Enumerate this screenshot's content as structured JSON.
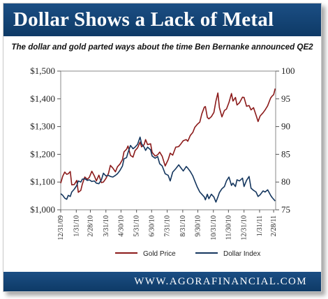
{
  "title": "Dollar Shows a Lack of Metal",
  "subtitle": "The dollar and gold parted ways about the time Ben Bernanke announced QE2",
  "footer": "WWW.AGORAFINANCIAL.COM",
  "colors": {
    "header_bg": "#124170",
    "gold_line": "#8b1a1a",
    "dollar_line": "#14365e"
  },
  "chart_data": {
    "type": "line",
    "title": "Dollar Shows a Lack of Metal",
    "x_tick_labels": [
      "12/31/09",
      "1/31/10",
      "2/28/10",
      "3/31/10",
      "4/30/10",
      "5/31/10",
      "6/30/10",
      "7/31/10",
      "8/31/10",
      "9/30/10",
      "10/31/10",
      "11/30/10",
      "12/31/10",
      "1/31/11",
      "2/28/11"
    ],
    "y_left": {
      "ticks": [
        "$1,000",
        "$1,100",
        "$1,200",
        "$1,300",
        "$1,400",
        "$1,500"
      ],
      "ylim": [
        1000,
        1500
      ]
    },
    "y_right": {
      "ticks": [
        "75",
        "80",
        "85",
        "90",
        "95",
        "100"
      ],
      "ylim": [
        75,
        100
      ]
    },
    "grid": false,
    "legend_position": "bottom",
    "x_start": "2009-12-31",
    "series": [
      {
        "name": "Gold Price",
        "axis": "left",
        "points": [
          [
            "2009-12-31",
            1096
          ],
          [
            "2010-01-04",
            1121
          ],
          [
            "2010-01-08",
            1136
          ],
          [
            "2010-01-12",
            1128
          ],
          [
            "2010-01-15",
            1130
          ],
          [
            "2010-01-19",
            1138
          ],
          [
            "2010-01-22",
            1090
          ],
          [
            "2010-01-27",
            1091
          ],
          [
            "2010-02-01",
            1106
          ],
          [
            "2010-02-04",
            1063
          ],
          [
            "2010-02-09",
            1070
          ],
          [
            "2010-02-12",
            1092
          ],
          [
            "2010-02-17",
            1118
          ],
          [
            "2010-02-22",
            1110
          ],
          [
            "2010-02-26",
            1117
          ],
          [
            "2010-03-03",
            1139
          ],
          [
            "2010-03-08",
            1122
          ],
          [
            "2010-03-12",
            1104
          ],
          [
            "2010-03-17",
            1125
          ],
          [
            "2010-03-22",
            1098
          ],
          [
            "2010-03-26",
            1100
          ],
          [
            "2010-03-31",
            1113
          ],
          [
            "2010-04-05",
            1131
          ],
          [
            "2010-04-09",
            1160
          ],
          [
            "2010-04-14",
            1150
          ],
          [
            "2010-04-19",
            1137
          ],
          [
            "2010-04-23",
            1155
          ],
          [
            "2010-04-28",
            1165
          ],
          [
            "2010-05-03",
            1181
          ],
          [
            "2010-05-06",
            1209
          ],
          [
            "2010-05-11",
            1218
          ],
          [
            "2010-05-14",
            1230
          ],
          [
            "2010-05-19",
            1196
          ],
          [
            "2010-05-24",
            1190
          ],
          [
            "2010-05-28",
            1213
          ],
          [
            "2010-06-02",
            1223
          ],
          [
            "2010-06-07",
            1244
          ],
          [
            "2010-06-10",
            1227
          ],
          [
            "2010-06-15",
            1235
          ],
          [
            "2010-06-18",
            1253
          ],
          [
            "2010-06-22",
            1235
          ],
          [
            "2010-06-28",
            1238
          ],
          [
            "2010-07-01",
            1207
          ],
          [
            "2010-07-07",
            1194
          ],
          [
            "2010-07-12",
            1198
          ],
          [
            "2010-07-16",
            1208
          ],
          [
            "2010-07-21",
            1193
          ],
          [
            "2010-07-27",
            1158
          ],
          [
            "2010-08-02",
            1181
          ],
          [
            "2010-08-06",
            1204
          ],
          [
            "2010-08-11",
            1197
          ],
          [
            "2010-08-17",
            1226
          ],
          [
            "2010-08-23",
            1228
          ],
          [
            "2010-08-27",
            1237
          ],
          [
            "2010-09-01",
            1249
          ],
          [
            "2010-09-07",
            1253
          ],
          [
            "2010-09-10",
            1247
          ],
          [
            "2010-09-15",
            1268
          ],
          [
            "2010-09-20",
            1279
          ],
          [
            "2010-09-24",
            1297
          ],
          [
            "2010-09-29",
            1308
          ],
          [
            "2010-10-04",
            1316
          ],
          [
            "2010-10-08",
            1346
          ],
          [
            "2010-10-13",
            1370
          ],
          [
            "2010-10-15",
            1372
          ],
          [
            "2010-10-19",
            1333
          ],
          [
            "2010-10-22",
            1328
          ],
          [
            "2010-10-27",
            1336
          ],
          [
            "2010-11-01",
            1351
          ],
          [
            "2010-11-05",
            1392
          ],
          [
            "2010-11-09",
            1421
          ],
          [
            "2010-11-12",
            1368
          ],
          [
            "2010-11-17",
            1335
          ],
          [
            "2010-11-22",
            1358
          ],
          [
            "2010-11-26",
            1363
          ],
          [
            "2010-12-01",
            1387
          ],
          [
            "2010-12-06",
            1419
          ],
          [
            "2010-12-09",
            1392
          ],
          [
            "2010-12-14",
            1405
          ],
          [
            "2010-12-17",
            1378
          ],
          [
            "2010-12-22",
            1386
          ],
          [
            "2010-12-28",
            1406
          ],
          [
            "2010-12-31",
            1405
          ],
          [
            "2011-01-05",
            1373
          ],
          [
            "2011-01-10",
            1376
          ],
          [
            "2011-01-14",
            1360
          ],
          [
            "2011-01-19",
            1368
          ],
          [
            "2011-01-24",
            1341
          ],
          [
            "2011-01-28",
            1318
          ],
          [
            "2011-02-01",
            1338
          ],
          [
            "2011-02-07",
            1350
          ],
          [
            "2011-02-11",
            1360
          ],
          [
            "2011-02-16",
            1375
          ],
          [
            "2011-02-22",
            1403
          ],
          [
            "2011-02-25",
            1410
          ],
          [
            "2011-02-28",
            1415
          ],
          [
            "2011-03-03",
            1437
          ]
        ]
      },
      {
        "name": "Dollar Index",
        "axis": "right",
        "points": [
          [
            "2009-12-31",
            77.9
          ],
          [
            "2010-01-04",
            77.6
          ],
          [
            "2010-01-08",
            77.1
          ],
          [
            "2010-01-12",
            76.9
          ],
          [
            "2010-01-15",
            77.6
          ],
          [
            "2010-01-19",
            77.4
          ],
          [
            "2010-01-22",
            78.2
          ],
          [
            "2010-01-27",
            78.7
          ],
          [
            "2010-02-01",
            79.4
          ],
          [
            "2010-02-04",
            80.2
          ],
          [
            "2010-02-09",
            80.0
          ],
          [
            "2010-02-12",
            80.5
          ],
          [
            "2010-02-17",
            80.6
          ],
          [
            "2010-02-22",
            80.3
          ],
          [
            "2010-02-26",
            80.4
          ],
          [
            "2010-03-03",
            80.1
          ],
          [
            "2010-03-08",
            80.2
          ],
          [
            "2010-03-12",
            79.8
          ],
          [
            "2010-03-17",
            79.7
          ],
          [
            "2010-03-22",
            80.4
          ],
          [
            "2010-03-26",
            81.6
          ],
          [
            "2010-03-31",
            81.1
          ],
          [
            "2010-04-05",
            81.2
          ],
          [
            "2010-04-09",
            81.0
          ],
          [
            "2010-04-14",
            80.9
          ],
          [
            "2010-04-19",
            81.2
          ],
          [
            "2010-04-23",
            81.5
          ],
          [
            "2010-04-28",
            82.1
          ],
          [
            "2010-05-03",
            82.9
          ],
          [
            "2010-05-06",
            84.2
          ],
          [
            "2010-05-11",
            84.4
          ],
          [
            "2010-05-14",
            85.3
          ],
          [
            "2010-05-19",
            86.6
          ],
          [
            "2010-05-24",
            86.0
          ],
          [
            "2010-05-28",
            86.3
          ],
          [
            "2010-06-02",
            86.8
          ],
          [
            "2010-06-07",
            88.1
          ],
          [
            "2010-06-10",
            86.9
          ],
          [
            "2010-06-15",
            86.3
          ],
          [
            "2010-06-18",
            85.7
          ],
          [
            "2010-06-22",
            86.3
          ],
          [
            "2010-06-28",
            85.8
          ],
          [
            "2010-07-01",
            84.7
          ],
          [
            "2010-07-07",
            84.3
          ],
          [
            "2010-07-12",
            84.6
          ],
          [
            "2010-07-16",
            83.3
          ],
          [
            "2010-07-21",
            82.9
          ],
          [
            "2010-07-27",
            81.5
          ],
          [
            "2010-08-02",
            81.2
          ],
          [
            "2010-08-06",
            80.2
          ],
          [
            "2010-08-11",
            81.8
          ],
          [
            "2010-08-17",
            82.4
          ],
          [
            "2010-08-23",
            83.1
          ],
          [
            "2010-08-27",
            82.6
          ],
          [
            "2010-09-01",
            82.0
          ],
          [
            "2010-09-07",
            82.8
          ],
          [
            "2010-09-10",
            82.5
          ],
          [
            "2010-09-15",
            81.9
          ],
          [
            "2010-09-20",
            81.1
          ],
          [
            "2010-09-24",
            80.2
          ],
          [
            "2010-09-29",
            79.1
          ],
          [
            "2010-10-04",
            78.2
          ],
          [
            "2010-10-08",
            77.8
          ],
          [
            "2010-10-13",
            77.3
          ],
          [
            "2010-10-15",
            76.8
          ],
          [
            "2010-10-19",
            77.8
          ],
          [
            "2010-10-22",
            77.0
          ],
          [
            "2010-10-27",
            77.8
          ],
          [
            "2010-11-01",
            77.3
          ],
          [
            "2010-11-05",
            76.4
          ],
          [
            "2010-11-09",
            77.3
          ],
          [
            "2010-11-12",
            78.1
          ],
          [
            "2010-11-17",
            78.8
          ],
          [
            "2010-11-22",
            79.2
          ],
          [
            "2010-11-26",
            80.2
          ],
          [
            "2010-12-01",
            80.9
          ],
          [
            "2010-12-06",
            79.4
          ],
          [
            "2010-12-09",
            79.8
          ],
          [
            "2010-12-14",
            79.2
          ],
          [
            "2010-12-17",
            80.4
          ],
          [
            "2010-12-22",
            80.2
          ],
          [
            "2010-12-28",
            80.7
          ],
          [
            "2010-12-31",
            79.2
          ],
          [
            "2011-01-05",
            80.3
          ],
          [
            "2011-01-10",
            81.0
          ],
          [
            "2011-01-14",
            78.9
          ],
          [
            "2011-01-19",
            78.5
          ],
          [
            "2011-01-24",
            78.2
          ],
          [
            "2011-01-28",
            77.4
          ],
          [
            "2011-02-01",
            77.7
          ],
          [
            "2011-02-07",
            78.4
          ],
          [
            "2011-02-11",
            78.2
          ],
          [
            "2011-02-16",
            78.6
          ],
          [
            "2011-02-22",
            77.6
          ],
          [
            "2011-02-25",
            77.2
          ],
          [
            "2011-02-28",
            76.9
          ],
          [
            "2011-03-03",
            76.6
          ]
        ]
      }
    ]
  }
}
